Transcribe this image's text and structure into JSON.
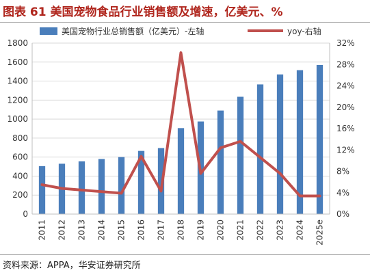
{
  "page": {
    "title": "图表 61  美国宠物食品行业销售额及增速，亿美元、%",
    "source": "资料来源：APPA，华安证券研究所"
  },
  "colors": {
    "bar": "#4a7ebb",
    "line": "#c0504d",
    "title": "#b0261d",
    "grid": "#d9d9d9"
  },
  "chart_data": {
    "type": "bar",
    "categories": [
      "2011",
      "2012",
      "2013",
      "2014",
      "2015",
      "2016",
      "2017",
      "2018",
      "2019",
      "2020",
      "2021",
      "2022",
      "2023",
      "2024",
      "2025e"
    ],
    "series": [
      {
        "name": "美国宠物行业总销售额（亿美元）-左轴",
        "type": "bar",
        "axis": "left",
        "values": [
          505,
          530,
          555,
          580,
          600,
          665,
          695,
          905,
          975,
          1090,
          1235,
          1365,
          1470,
          1515,
          1570
        ]
      },
      {
        "name": "yoy-右轴",
        "type": "line",
        "axis": "right",
        "values": [
          5.5,
          4.8,
          4.5,
          4.2,
          3.9,
          10.8,
          4.3,
          30.2,
          7.6,
          12.4,
          13.6,
          10.6,
          7.6,
          3.4,
          3.4
        ]
      }
    ],
    "left_axis": {
      "ylim": [
        0,
        1800
      ],
      "ticks": [
        "0",
        "200",
        "400",
        "600",
        "800",
        "1000",
        "1200",
        "1400",
        "1600",
        "1800"
      ]
    },
    "right_axis": {
      "ylim": [
        0,
        32
      ],
      "ticks": [
        "0%",
        "4%",
        "8%",
        "12%",
        "16%",
        "20%",
        "24%",
        "28%",
        "32%"
      ]
    },
    "grid": true,
    "legend_position": "top"
  }
}
